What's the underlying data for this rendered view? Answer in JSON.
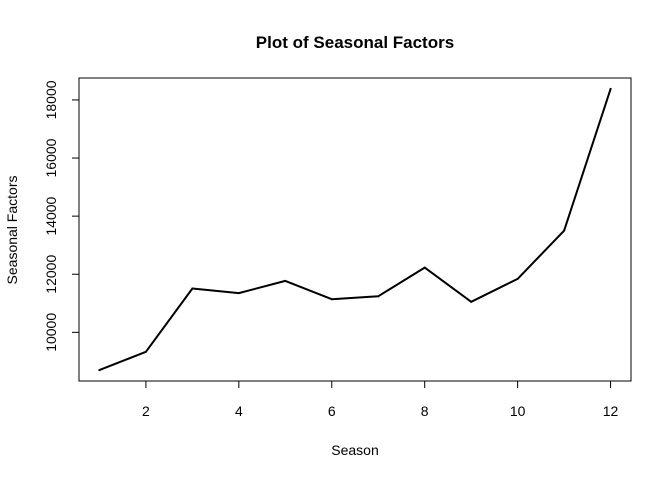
{
  "chart_data": {
    "type": "line",
    "title": "Plot of Seasonal Factors",
    "xlabel": "Season",
    "ylabel": "Seasonal Factors",
    "x": [
      1,
      2,
      3,
      4,
      5,
      6,
      7,
      8,
      9,
      10,
      11,
      12
    ],
    "series": [
      {
        "values": [
          8700,
          9330,
          11510,
          11350,
          11770,
          11140,
          11240,
          12230,
          11050,
          11840,
          13500,
          18380
        ]
      }
    ],
    "xticks": [
      2,
      4,
      6,
      8,
      10,
      12
    ],
    "yticks": [
      10000,
      12000,
      14000,
      16000,
      18000
    ],
    "xlim": [
      0.56,
      12.44
    ],
    "ylim": [
      8325,
      18755
    ],
    "line_color": "#000000",
    "grid": false,
    "legend": "none"
  }
}
